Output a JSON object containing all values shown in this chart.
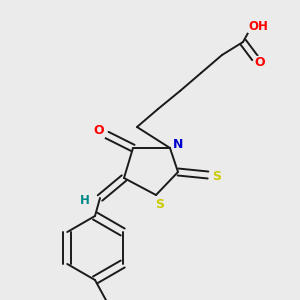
{
  "bg_color": "#ebebeb",
  "bond_color": "#1a1a1a",
  "atom_colors": {
    "O": "#ff0000",
    "N": "#0000cc",
    "S": "#cccc00",
    "H": "#008888",
    "C": "#1a1a1a"
  },
  "font_size": 8.5,
  "lw": 1.4
}
